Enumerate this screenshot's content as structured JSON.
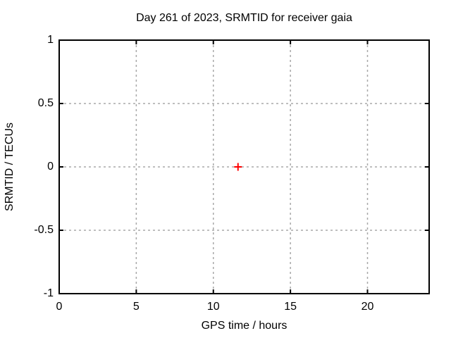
{
  "chart_data": {
    "type": "scatter",
    "title": "Day 261 of 2023, SRMTID for receiver gaia",
    "xlabel": "GPS time / hours",
    "ylabel": "SRMTID / TECUs",
    "xlim": [
      0,
      24
    ],
    "ylim": [
      -1,
      1
    ],
    "xticks": {
      "values": [
        0,
        5,
        10,
        15,
        20
      ],
      "labels": [
        "0",
        "5",
        "10",
        "15",
        "20"
      ]
    },
    "yticks": {
      "values": [
        -1,
        -0.5,
        0,
        0.5,
        1
      ],
      "labels": [
        "-1",
        "-0.5",
        "0",
        "0.5",
        "1"
      ]
    },
    "grid": true,
    "legend": false,
    "series": [
      {
        "name": "SRMTID",
        "marker": "plus",
        "color": "#ff0000",
        "points": [
          {
            "x": 11.6,
            "y": 0
          }
        ]
      }
    ],
    "colors": {
      "border": "#000000",
      "grid": "#a8a8a8",
      "text": "#000000",
      "background": "#ffffff",
      "marker": "#ff0000"
    }
  }
}
